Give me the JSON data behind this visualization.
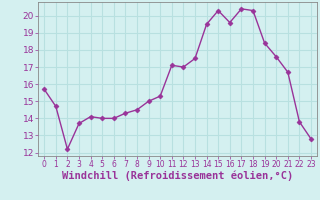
{
  "x": [
    0,
    1,
    2,
    3,
    4,
    5,
    6,
    7,
    8,
    9,
    10,
    11,
    12,
    13,
    14,
    15,
    16,
    17,
    18,
    19,
    20,
    21,
    22,
    23
  ],
  "y": [
    15.7,
    14.7,
    12.2,
    13.7,
    14.1,
    14.0,
    14.0,
    14.3,
    14.5,
    15.0,
    15.3,
    17.1,
    17.0,
    17.5,
    19.5,
    20.3,
    19.6,
    20.4,
    20.3,
    18.4,
    17.6,
    16.7,
    13.8,
    12.8
  ],
  "line_color": "#993399",
  "marker": "D",
  "marker_size": 2.5,
  "line_width": 1.0,
  "ylim": [
    11.8,
    20.8
  ],
  "yticks": [
    12,
    13,
    14,
    15,
    16,
    17,
    18,
    19,
    20
  ],
  "xlim": [
    -0.5,
    23.5
  ],
  "xlabel": "Windchill (Refroidissement éolien,°C)",
  "xlabel_color": "#993399",
  "background_color": "#d4f0f0",
  "grid_color": "#b8e0e0",
  "tick_label_color": "#993399",
  "ytick_label_size": 6.5,
  "xtick_label_size": 5.5,
  "xlabel_size": 7.5,
  "spine_color": "#888888"
}
